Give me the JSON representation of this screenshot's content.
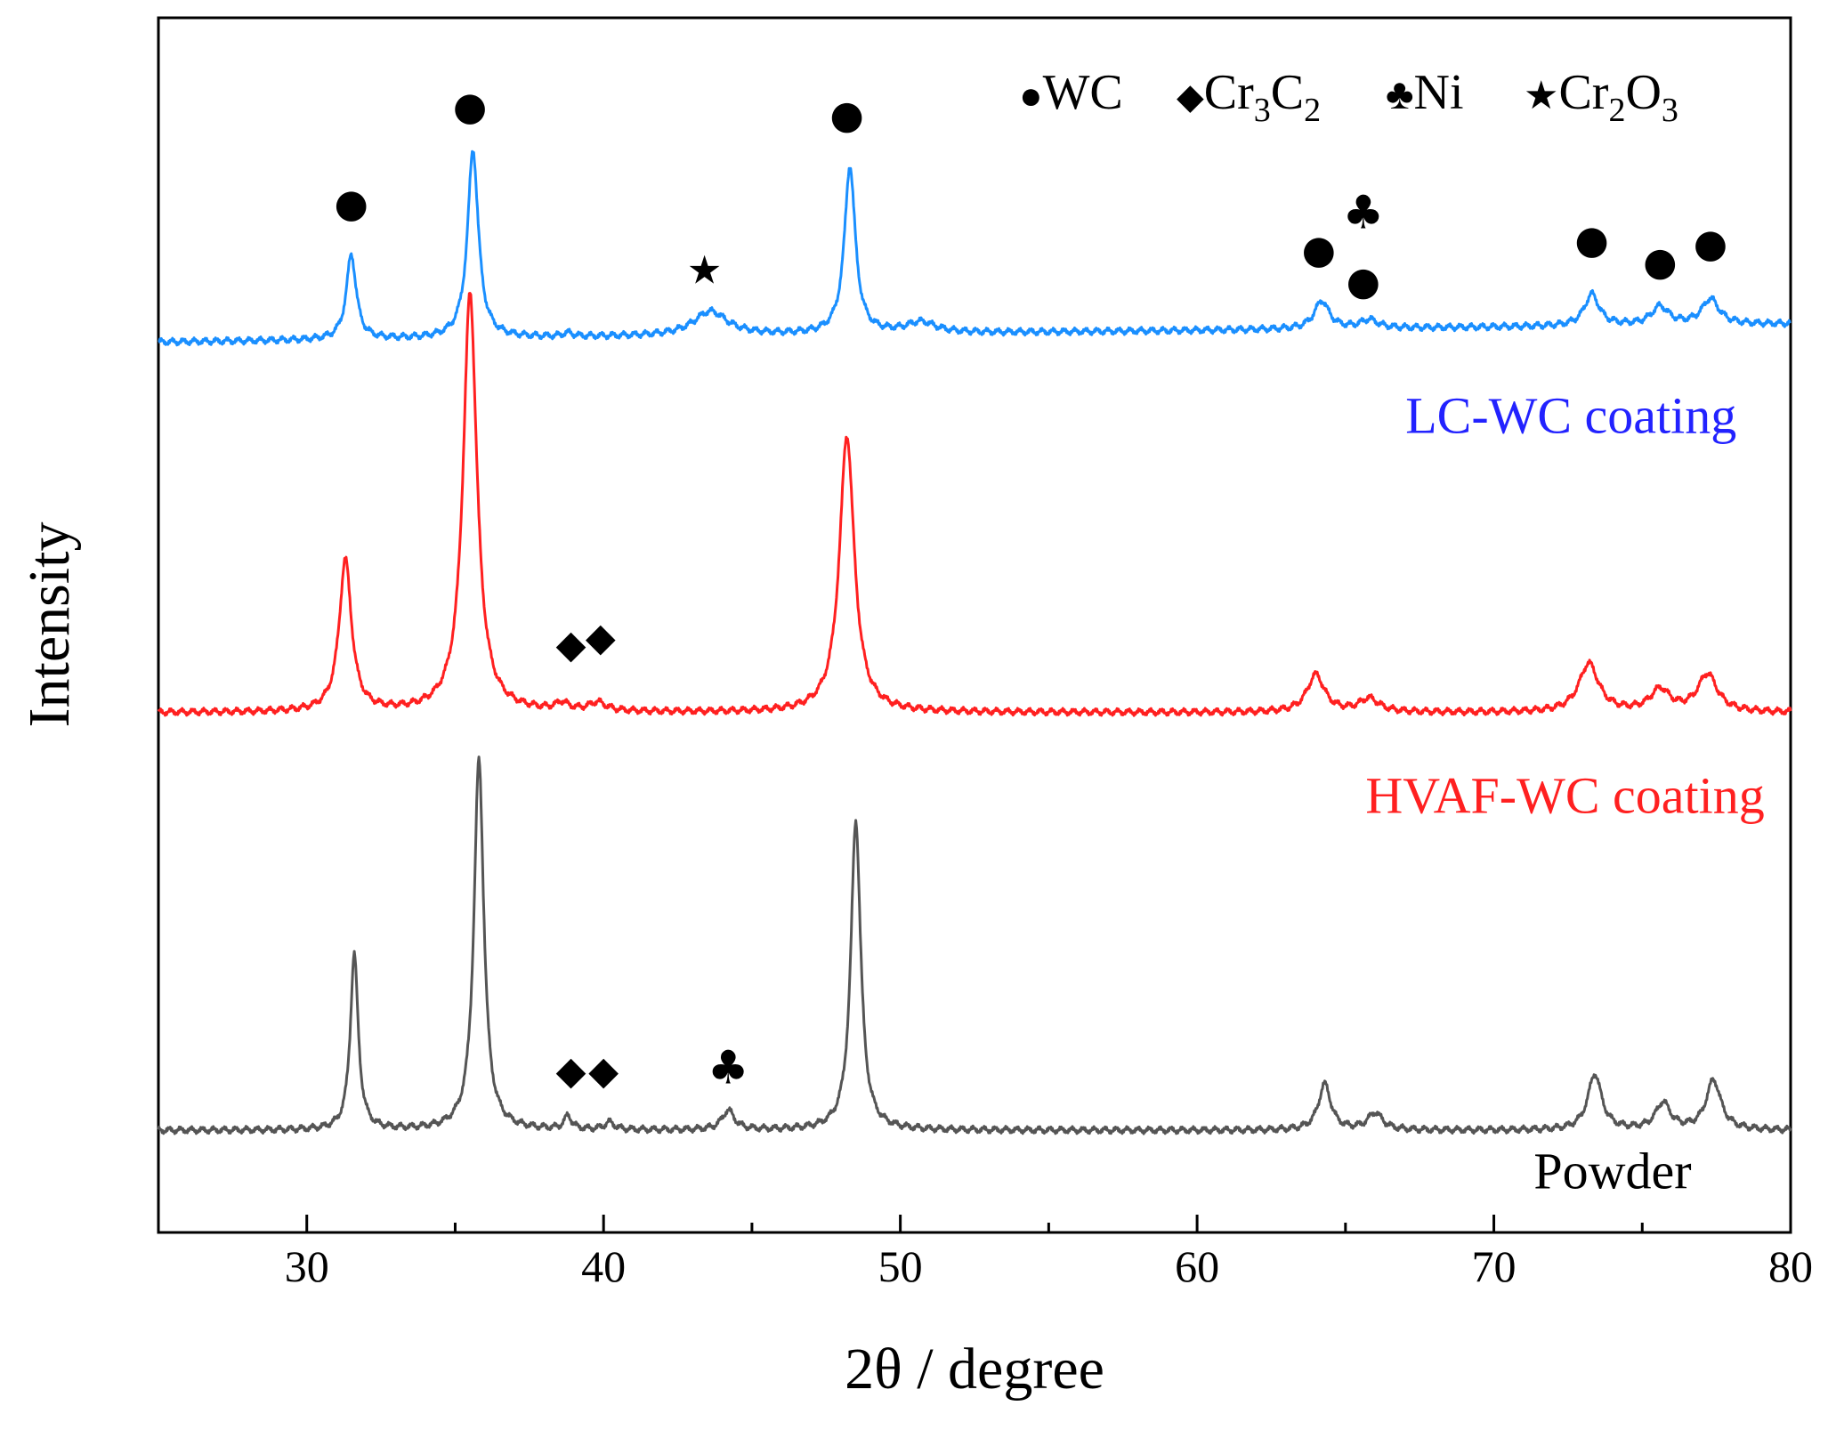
{
  "chart_data": {
    "type": "line",
    "title": "",
    "xlabel": "2θ / degree",
    "ylabel": "Intensity",
    "xlim": [
      25,
      80
    ],
    "ylim": [
      0,
      100
    ],
    "xticks": [
      "30",
      "40",
      "50",
      "60",
      "70",
      "80"
    ],
    "colors": {
      "lc": "#1a8fff",
      "hvaf": "#ff2020",
      "powder": "#555555",
      "lc_label": "#2222ff",
      "hvaf_label": "#ff2020",
      "powder_label": "#000000",
      "axis": "#000000"
    },
    "legend": {
      "wc": {
        "symbol": "●",
        "text": "WC"
      },
      "cr3c2": {
        "symbol": "◆",
        "text": "Cr",
        "sub1": "3",
        "mid": "C",
        "sub2": "2"
      },
      "ni": {
        "symbol": "♣",
        "text": "Ni"
      },
      "cr2o3": {
        "symbol": "★",
        "text": "Cr",
        "sub1": "2",
        "mid": "O",
        "sub2": "3"
      }
    },
    "series": [
      {
        "name": "LC-WC coating",
        "key": "lc",
        "baseline": 73.3,
        "baseline_end": 74.8,
        "peaks": [
          {
            "x": 31.5,
            "h": 7.0,
            "w": 0.2
          },
          {
            "x": 35.6,
            "h": 15.5,
            "w": 0.22
          },
          {
            "x": 38.8,
            "h": 0.3,
            "w": 0.2
          },
          {
            "x": 43.6,
            "h": 2.0,
            "w": 0.7
          },
          {
            "x": 48.3,
            "h": 13.8,
            "w": 0.22
          },
          {
            "x": 50.7,
            "h": 0.9,
            "w": 0.6
          },
          {
            "x": 64.2,
            "h": 2.3,
            "w": 0.3
          },
          {
            "x": 65.8,
            "h": 0.7,
            "w": 0.35
          },
          {
            "x": 73.3,
            "h": 2.6,
            "w": 0.3
          },
          {
            "x": 75.6,
            "h": 1.5,
            "w": 0.35
          },
          {
            "x": 77.3,
            "h": 2.1,
            "w": 0.35
          }
        ]
      },
      {
        "name": "HVAF-WC coating",
        "key": "hvaf",
        "baseline": 42.8,
        "baseline_end": 42.8,
        "peaks": [
          {
            "x": 31.3,
            "h": 12.5,
            "w": 0.25
          },
          {
            "x": 35.5,
            "h": 34.5,
            "w": 0.28
          },
          {
            "x": 38.6,
            "h": 0.6,
            "w": 0.25
          },
          {
            "x": 39.8,
            "h": 0.7,
            "w": 0.35
          },
          {
            "x": 48.2,
            "h": 22.8,
            "w": 0.3
          },
          {
            "x": 64.0,
            "h": 3.1,
            "w": 0.35
          },
          {
            "x": 65.8,
            "h": 1.1,
            "w": 0.4
          },
          {
            "x": 73.2,
            "h": 4.0,
            "w": 0.4
          },
          {
            "x": 75.6,
            "h": 1.8,
            "w": 0.4
          },
          {
            "x": 77.2,
            "h": 3.1,
            "w": 0.4
          }
        ]
      },
      {
        "name": "Powder",
        "key": "powder",
        "baseline": 8.4,
        "baseline_end": 8.4,
        "peaks": [
          {
            "x": 31.6,
            "h": 14.5,
            "w": 0.16
          },
          {
            "x": 35.8,
            "h": 30.5,
            "w": 0.2
          },
          {
            "x": 38.8,
            "h": 1.1,
            "w": 0.15
          },
          {
            "x": 40.2,
            "h": 0.6,
            "w": 0.2
          },
          {
            "x": 44.2,
            "h": 1.6,
            "w": 0.25
          },
          {
            "x": 48.5,
            "h": 25.5,
            "w": 0.2
          },
          {
            "x": 64.3,
            "h": 3.8,
            "w": 0.25
          },
          {
            "x": 66.0,
            "h": 1.4,
            "w": 0.3
          },
          {
            "x": 73.4,
            "h": 4.6,
            "w": 0.28
          },
          {
            "x": 75.7,
            "h": 2.2,
            "w": 0.3
          },
          {
            "x": 77.4,
            "h": 4.1,
            "w": 0.3
          }
        ]
      }
    ],
    "markers": [
      {
        "symbol": "●",
        "x": 31.5,
        "y": 84.5
      },
      {
        "symbol": "●",
        "x": 35.5,
        "y": 92.5
      },
      {
        "symbol": "★",
        "x": 43.4,
        "y": 79.0
      },
      {
        "symbol": "●",
        "x": 48.2,
        "y": 91.8
      },
      {
        "symbol": "●",
        "x": 64.1,
        "y": 80.7
      },
      {
        "symbol": "♣",
        "x": 65.6,
        "y": 83.7
      },
      {
        "symbol": "●",
        "x": 65.6,
        "y": 78.1
      },
      {
        "symbol": "●",
        "x": 73.3,
        "y": 81.5
      },
      {
        "symbol": "●",
        "x": 75.6,
        "y": 79.7
      },
      {
        "symbol": "●",
        "x": 77.3,
        "y": 81.2
      },
      {
        "symbol": "◆",
        "x": 38.9,
        "y": 48.2
      },
      {
        "symbol": "◆",
        "x": 39.9,
        "y": 48.8
      },
      {
        "symbol": "◆",
        "x": 38.9,
        "y": 13.1
      },
      {
        "symbol": "◆",
        "x": 40.0,
        "y": 13.1
      },
      {
        "symbol": "♣",
        "x": 44.2,
        "y": 13.3
      }
    ],
    "labels": [
      {
        "text": "LC-WC coating",
        "key": "lc_label",
        "x": 72.6,
        "y": 66.8
      },
      {
        "text": "HVAF-WC coating",
        "key": "hvaf_label",
        "x": 72.4,
        "y": 35.5
      },
      {
        "text": "Powder",
        "key": "powder_label",
        "x": 74.0,
        "y": 4.6
      }
    ]
  }
}
